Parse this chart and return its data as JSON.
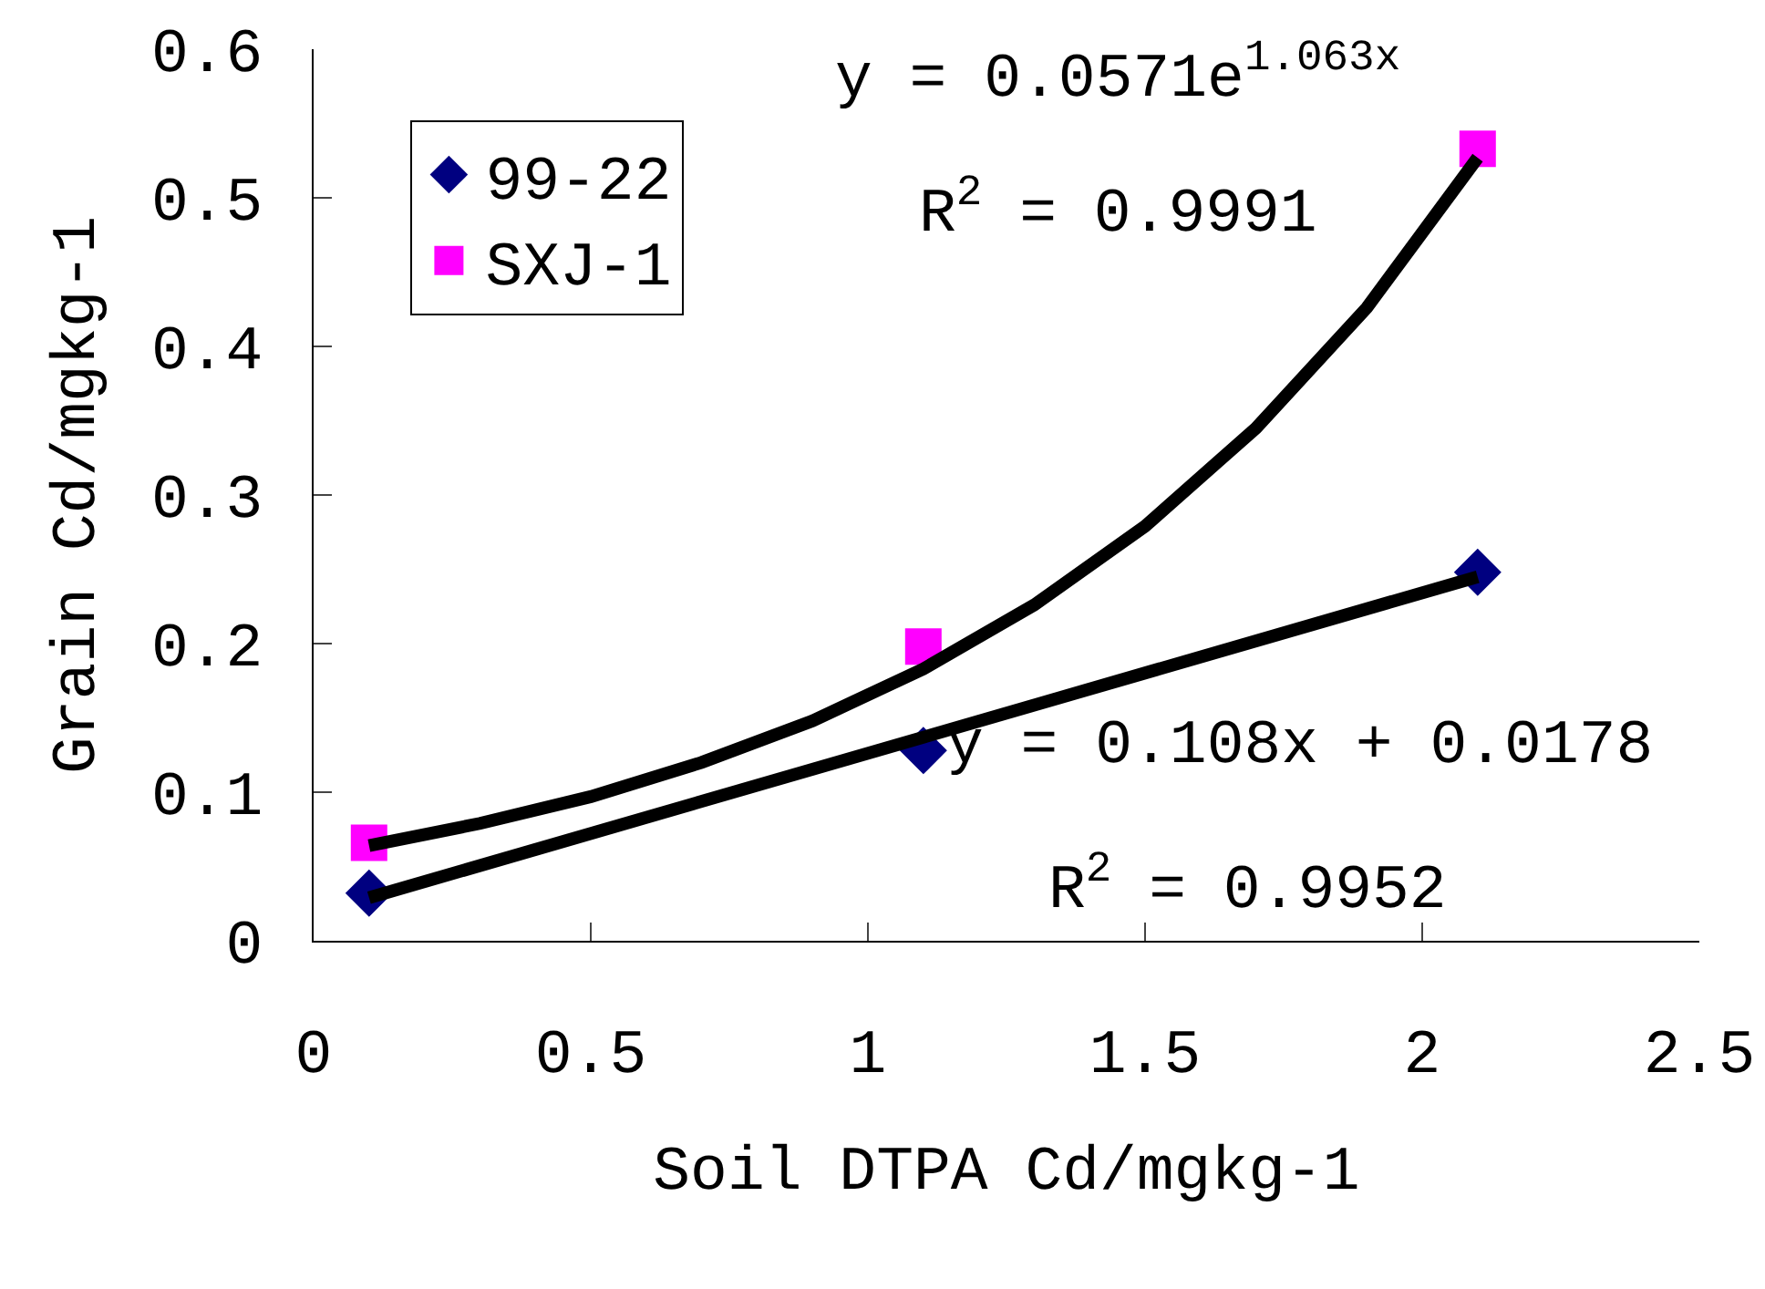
{
  "chart_data": {
    "type": "scatter",
    "xlabel": "Soil DTPA Cd/mgkg-1",
    "ylabel": "Grain Cd/mgkg-1",
    "x": [
      0.1,
      1.1,
      2.1
    ],
    "series": [
      {
        "name": "99-22",
        "color": "#000080",
        "marker": "diamond",
        "values": [
          0.032,
          0.128,
          0.248
        ]
      },
      {
        "name": "SXJ-1",
        "color": "#ff00ff",
        "marker": "square",
        "values": [
          0.066,
          0.198,
          0.533
        ]
      },
      {
        "type": "line",
        "color": "#000000",
        "marker": "none",
        "x": [
          0.1,
          2.1
        ],
        "values": [
          0.029,
          0.245
        ]
      },
      {
        "type": "line",
        "color": "#000000",
        "marker": "none",
        "x": [
          0.1,
          0.3,
          0.5,
          0.7,
          0.9,
          1.1,
          1.3,
          1.5,
          1.7,
          1.9,
          2.1
        ],
        "values": [
          0.064,
          0.079,
          0.097,
          0.12,
          0.148,
          0.183,
          0.226,
          0.279,
          0.345,
          0.426,
          0.527
        ]
      }
    ],
    "annotations": [
      "y = 0.0571e$^{1.063x}$",
      "R$^{2}$ = 0.9991",
      "y = 0.108x + 0.0178",
      "R$^{2}$ = 0.9952"
    ],
    "xlim": [
      0,
      2.5
    ],
    "xticks": [
      0,
      0.5,
      1,
      1.5,
      2,
      2.5
    ],
    "ylim": [
      0,
      0.6
    ],
    "yticks": [
      0,
      0.1,
      0.2,
      0.3,
      0.4,
      0.5,
      0.6
    ],
    "legend": "top left"
  }
}
